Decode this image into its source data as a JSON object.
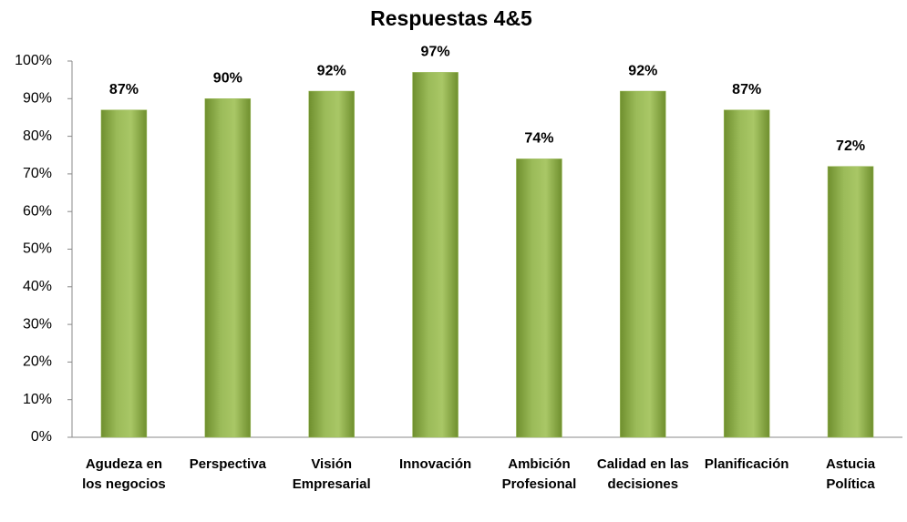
{
  "chart_data": {
    "type": "bar",
    "title": "Respuestas 4&5",
    "categories": [
      "Agudeza en los negocios",
      "Perspectiva",
      "Visión Empresarial",
      "Innovación",
      "Ambición Profesional",
      "Calidad en las decisiones",
      "Planificación",
      "Astucia Política"
    ],
    "values": [
      87,
      90,
      92,
      97,
      74,
      92,
      87,
      72
    ],
    "value_labels": [
      "87%",
      "90%",
      "92%",
      "97%",
      "74%",
      "92%",
      "87%",
      "72%"
    ],
    "color": "#9bbb59",
    "ylim": [
      0,
      100
    ],
    "yticks": [
      {
        "value": 0,
        "label": "0%"
      },
      {
        "value": 10,
        "label": "10%"
      },
      {
        "value": 20,
        "label": "20%"
      },
      {
        "value": 30,
        "label": "30%"
      },
      {
        "value": 40,
        "label": "40%"
      },
      {
        "value": 50,
        "label": "50%"
      },
      {
        "value": 60,
        "label": "60%"
      },
      {
        "value": 70,
        "label": "70%"
      },
      {
        "value": 80,
        "label": "80%"
      },
      {
        "value": 90,
        "label": "90%"
      },
      {
        "value": 100,
        "label": "100%"
      }
    ],
    "grid": false
  }
}
